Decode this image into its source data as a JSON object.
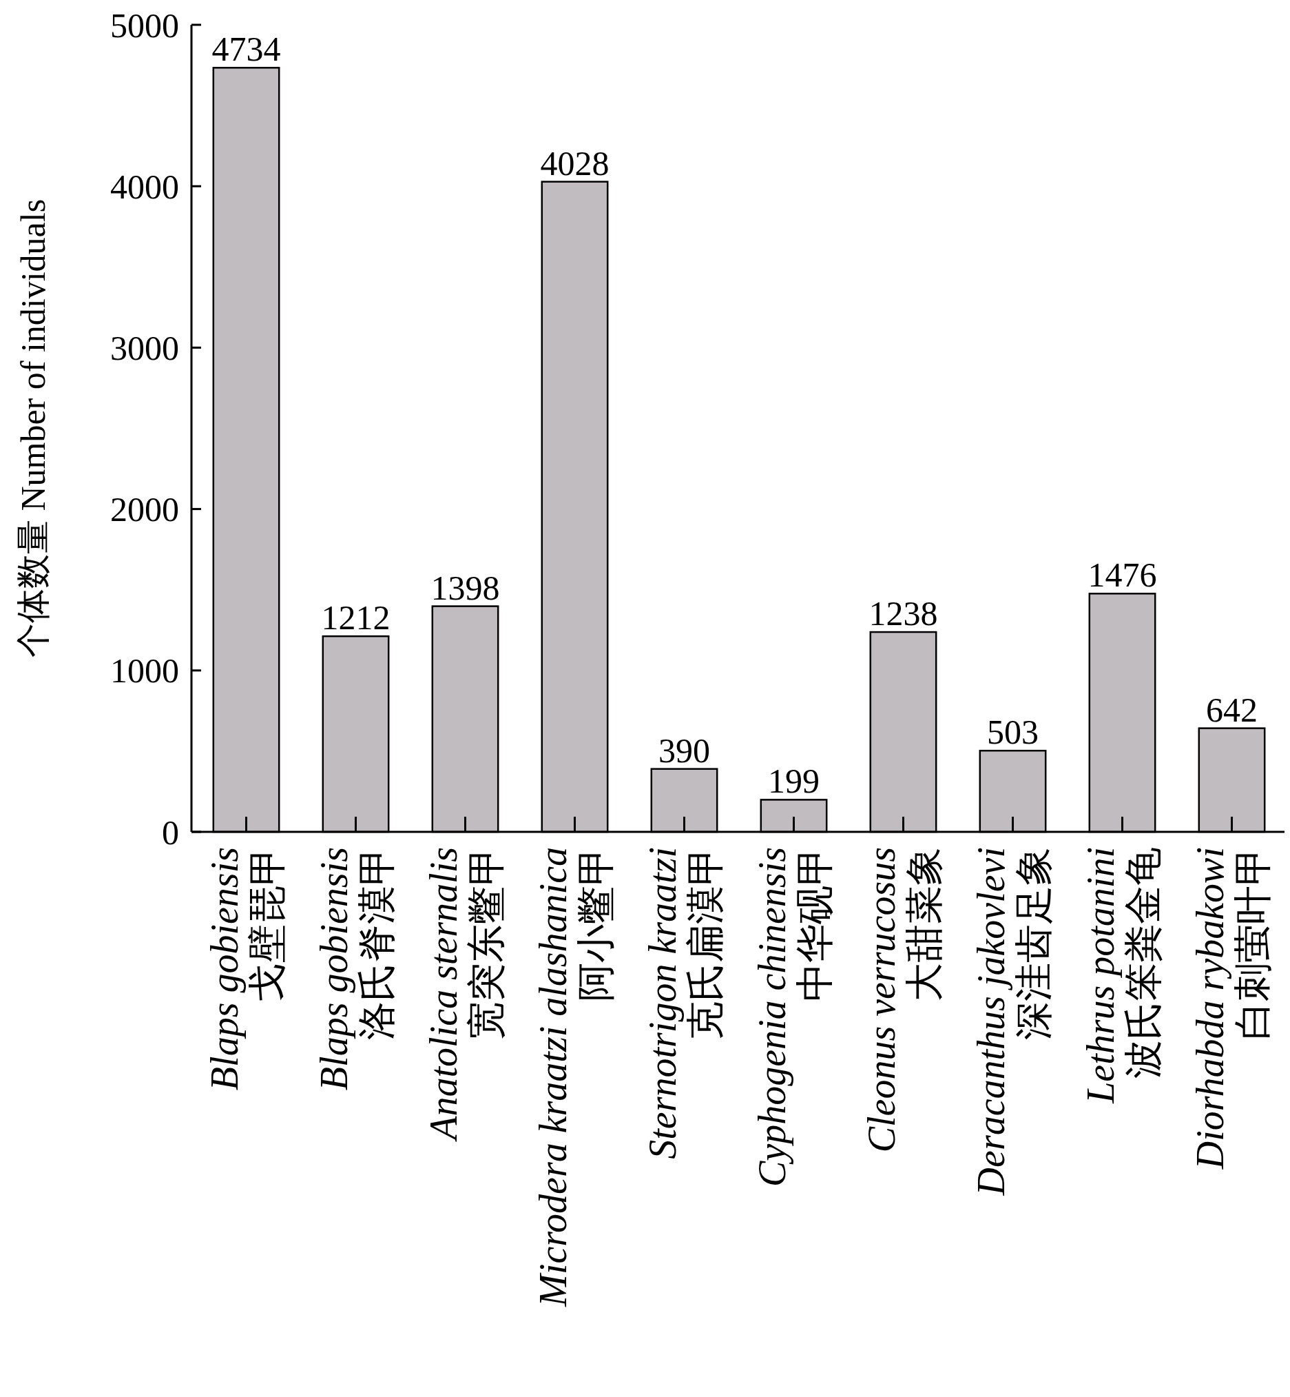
{
  "chart_data": {
    "type": "bar",
    "ylabel": "个体数量 Number of individuals",
    "categories": [
      "Blaps gobiensis\n戈壁琵甲",
      "Blaps gobiensis\n洛氏脊漠甲",
      "Anatolica sternalis\n宽突东鳖甲",
      "Microdera kraatzi alashanica\n阿小鳖甲",
      "Sternotrigon kraatzi\n克氏扁漠甲",
      "Cyphogenia chinensis\n中华砚甲",
      "Cleonus verrucosus\n大甜菜象",
      "Deracanthus jakovlevi\n深洼齿足象",
      "Lethrus potanini\n波氏笨粪金龟",
      "Diorhabda rybakowi\n白刺萤叶甲"
    ],
    "values": [
      4734,
      1212,
      1398,
      4028,
      390,
      199,
      1238,
      503,
      1476,
      642
    ],
    "color": "#c0bcc0",
    "ylim": [
      0,
      5000
    ],
    "yticks": [
      0,
      1000,
      2000,
      3000,
      4000,
      5000
    ],
    "data_labels": true,
    "grid": false
  }
}
